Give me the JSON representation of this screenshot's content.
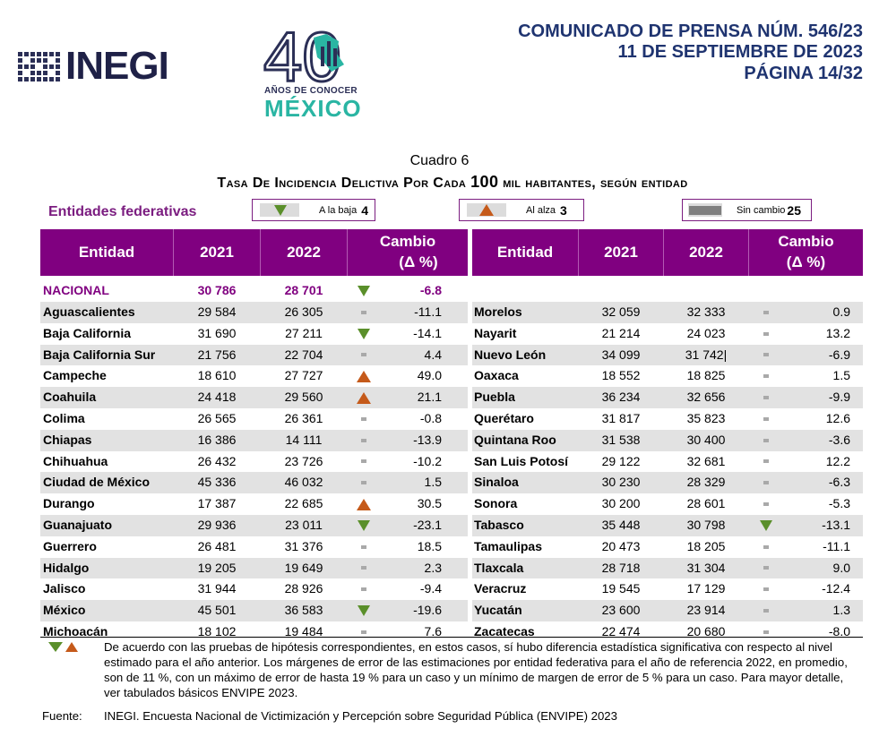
{
  "header": {
    "org_name": "INEGI",
    "anniversary_number": "40",
    "anniversary_sub": "AÑOS DE CONOCER",
    "anniversary_country": "MÉXICO",
    "press_lines": [
      "COMUNICADO DE PRENSA NÚM. 546/23",
      "11 DE SEPTIEMBRE DE 2023",
      "PÁGINA 14/32"
    ]
  },
  "cuadro_label": "Cuadro 6",
  "table_title_pre": "Tasa de incidencia delictiva por cada ",
  "table_title_num": "100",
  "table_title_post": " mil habitantes, según entidad",
  "section_label": "Entidades federativas",
  "legend": [
    {
      "icon": "down-triangle-icon",
      "label": "A la baja",
      "count": "4"
    },
    {
      "icon": "up-triangle-icon",
      "label": "Al alza",
      "count": "3"
    },
    {
      "icon": "no-change-icon",
      "label": "Sin cambio",
      "count": "25"
    }
  ],
  "columns": {
    "entity": "Entidad",
    "y2021": "2021",
    "y2022": "2022",
    "change": "Cambio",
    "change_unit": "(Δ %)"
  },
  "national": {
    "name": "NACIONAL",
    "v2021": "30 786",
    "v2022": "28 701",
    "trend": "down",
    "change": "-6.8"
  },
  "left_rows": [
    {
      "name": "Aguascalientes",
      "v2021": "29 584",
      "v2022": "26 305",
      "trend": "none",
      "change": "-11.1"
    },
    {
      "name": "Baja California",
      "v2021": "31 690",
      "v2022": "27 211",
      "trend": "down",
      "change": "-14.1"
    },
    {
      "name": "Baja California Sur",
      "v2021": "21 756",
      "v2022": "22 704",
      "trend": "none",
      "change": "4.4"
    },
    {
      "name": "Campeche",
      "v2021": "18 610",
      "v2022": "27 727",
      "trend": "up",
      "change": "49.0"
    },
    {
      "name": "Coahuila",
      "v2021": "24 418",
      "v2022": "29 560",
      "trend": "up",
      "change": "21.1"
    },
    {
      "name": "Colima",
      "v2021": "26 565",
      "v2022": "26 361",
      "trend": "none",
      "change": "-0.8"
    },
    {
      "name": "Chiapas",
      "v2021": "16 386",
      "v2022": "14 111",
      "trend": "none",
      "change": "-13.9"
    },
    {
      "name": "Chihuahua",
      "v2021": "26 432",
      "v2022": "23 726",
      "trend": "none",
      "change": "-10.2"
    },
    {
      "name": "Ciudad de México",
      "v2021": "45 336",
      "v2022": "46 032",
      "trend": "none",
      "change": "1.5"
    },
    {
      "name": "Durango",
      "v2021": "17 387",
      "v2022": "22 685",
      "trend": "up",
      "change": "30.5"
    },
    {
      "name": "Guanajuato",
      "v2021": "29 936",
      "v2022": "23 011",
      "trend": "down",
      "change": "-23.1"
    },
    {
      "name": "Guerrero",
      "v2021": "26 481",
      "v2022": "31 376",
      "trend": "none",
      "change": "18.5"
    },
    {
      "name": "Hidalgo",
      "v2021": "19 205",
      "v2022": "19 649",
      "trend": "none",
      "change": "2.3"
    },
    {
      "name": "Jalisco",
      "v2021": "31 944",
      "v2022": "28 926",
      "trend": "none",
      "change": "-9.4"
    },
    {
      "name": "México",
      "v2021": "45 501",
      "v2022": "36 583",
      "trend": "down",
      "change": "-19.6"
    },
    {
      "name": "Michoacán",
      "v2021": "18 102",
      "v2022": "19 484",
      "trend": "none",
      "change": "7.6"
    }
  ],
  "right_rows": [
    {
      "name": "Morelos",
      "v2021": "32 059",
      "v2022": "32 333",
      "trend": "none",
      "change": "0.9"
    },
    {
      "name": "Nayarit",
      "v2021": "21 214",
      "v2022": "24 023",
      "trend": "none",
      "change": "13.2"
    },
    {
      "name": "Nuevo León",
      "v2021": "34 099",
      "v2022": "31 742|",
      "trend": "none",
      "change": "-6.9"
    },
    {
      "name": "Oaxaca",
      "v2021": "18 552",
      "v2022": "18 825",
      "trend": "none",
      "change": "1.5"
    },
    {
      "name": "Puebla",
      "v2021": "36 234",
      "v2022": "32 656",
      "trend": "none",
      "change": "-9.9"
    },
    {
      "name": "Querétaro",
      "v2021": "31 817",
      "v2022": "35 823",
      "trend": "none",
      "change": "12.6"
    },
    {
      "name": "Quintana Roo",
      "v2021": "31 538",
      "v2022": "30 400",
      "trend": "none",
      "change": "-3.6"
    },
    {
      "name": "San Luis Potosí",
      "v2021": "29 122",
      "v2022": "32 681",
      "trend": "none",
      "change": "12.2"
    },
    {
      "name": "Sinaloa",
      "v2021": "30 230",
      "v2022": "28 329",
      "trend": "none",
      "change": "-6.3"
    },
    {
      "name": "Sonora",
      "v2021": "30 200",
      "v2022": "28 601",
      "trend": "none",
      "change": "-5.3"
    },
    {
      "name": "Tabasco",
      "v2021": "35 448",
      "v2022": "30 798",
      "trend": "down",
      "change": "-13.1"
    },
    {
      "name": "Tamaulipas",
      "v2021": "20 473",
      "v2022": "18 205",
      "trend": "none",
      "change": "-11.1"
    },
    {
      "name": "Tlaxcala",
      "v2021": "28 718",
      "v2022": "31 304",
      "trend": "none",
      "change": "9.0"
    },
    {
      "name": "Veracruz",
      "v2021": "19 545",
      "v2022": "17 129",
      "trend": "none",
      "change": "-12.4"
    },
    {
      "name": "Yucatán",
      "v2021": "23 600",
      "v2022": "23 914",
      "trend": "none",
      "change": "1.3"
    },
    {
      "name": "Zacatecas",
      "v2021": "22 474",
      "v2022": "20 680",
      "trend": "none",
      "change": "-8.0"
    }
  ],
  "colors": {
    "header_bg": "#800080",
    "shade": "#e2e2e2",
    "down": "#5a8f2a",
    "up": "#c55a1a",
    "none": "#a9a9a9",
    "press": "#1f3470"
  },
  "footnote": "De acuerdo con las pruebas de hipótesis correspondientes, en estos casos, sí hubo diferencia estadística significativa con respecto al nivel estimado para el año anterior. Los márgenes de error de las estimaciones por entidad federativa para el año de referencia 2022, en promedio, son de 11 %, con un máximo de error de hasta 19 % para un caso y un mínimo de margen de error de 5 % para un caso. Para mayor detalle, ver tabulados básicos ENVIPE 2023.",
  "source_label": "Fuente:",
  "source_text": "INEGI. Encuesta Nacional de Victimización y Percepción sobre Seguridad Pública (ENVIPE) 2023"
}
